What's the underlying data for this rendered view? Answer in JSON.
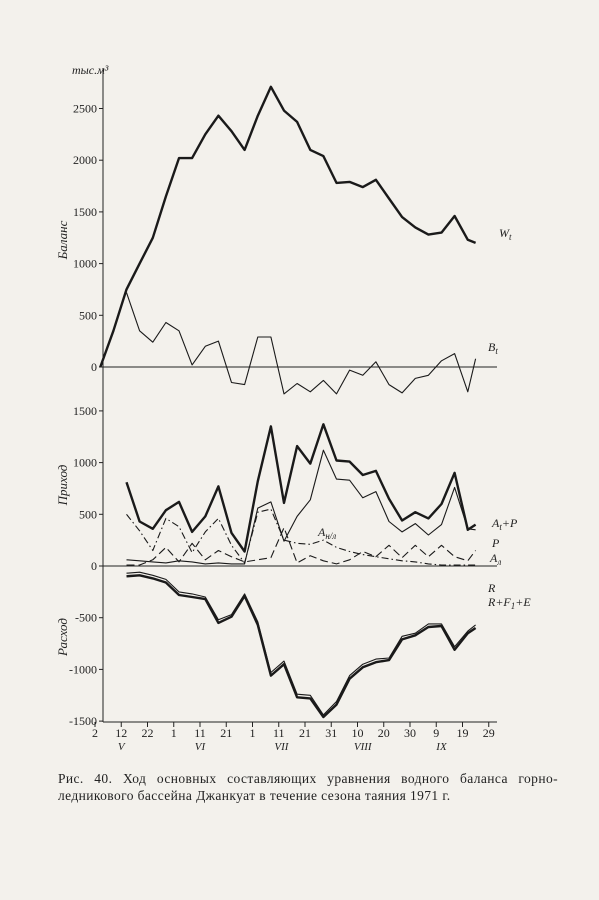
{
  "chart_data": {
    "type": "line",
    "unit": "тыс.м³",
    "x_ticks": [
      "2",
      "12",
      "22",
      "1",
      "11",
      "21",
      "1",
      "11",
      "21",
      "31",
      "10",
      "20",
      "30",
      "9",
      "19",
      "29"
    ],
    "months": [
      "V",
      "VI",
      "VII",
      "VIII",
      "IX"
    ],
    "panels": [
      {
        "ylabel": "Баланс",
        "ylim": [
          0,
          2700
        ],
        "yticks": [
          0,
          500,
          1000,
          1500,
          2000,
          2500
        ],
        "series": [
          {
            "name": "W_t",
            "style": "bold",
            "x": [
              2,
              7,
              12,
              17,
              22,
              27,
              32,
              37,
              42,
              47,
              52,
              57,
              62,
              67,
              72,
              77,
              82,
              87,
              92,
              97,
              102,
              107,
              112,
              117,
              122,
              127,
              132,
              137,
              142,
              145
            ],
            "values": [
              0,
              350,
              750,
              1000,
              1250,
              1650,
              2020,
              2020,
              2250,
              2430,
              2280,
              2100,
              2430,
              2710,
              2480,
              2370,
              2100,
              2040,
              1780,
              1790,
              1740,
              1810,
              1630,
              1450,
              1350,
              1280,
              1300,
              1460,
              1230,
              1200
            ]
          },
          {
            "name": "B_t",
            "style": "thin",
            "x": [
              12,
              17,
              22,
              27,
              32,
              37,
              42,
              47,
              52,
              57,
              62,
              67,
              72,
              77,
              82,
              87,
              92,
              97,
              102,
              107,
              112,
              117,
              122,
              127,
              132,
              137,
              142,
              145
            ],
            "values": [
              720,
              350,
              240,
              430,
              350,
              20,
              200,
              250,
              -150,
              -170,
              290,
              290,
              -260,
              -160,
              -240,
              -130,
              -260,
              -30,
              -80,
              50,
              -170,
              -250,
              -110,
              -80,
              60,
              130,
              -240,
              80
            ]
          }
        ]
      },
      {
        "ylabel": "Приход",
        "ylim": [
          0,
          1500
        ],
        "yticks": [
          0,
          500,
          1000,
          1500
        ],
        "series": [
          {
            "name": "A_t+P",
            "style": "bold",
            "x": [
              12,
              17,
              22,
              27,
              32,
              37,
              42,
              47,
              52,
              57,
              62,
              67,
              72,
              77,
              82,
              87,
              92,
              97,
              102,
              107,
              112,
              117,
              122,
              127,
              132,
              137,
              142,
              145
            ],
            "values": [
              810,
              430,
              360,
              540,
              620,
              330,
              480,
              770,
              320,
              140,
              820,
              1350,
              610,
              1160,
              990,
              1370,
              1020,
              1010,
              880,
              920,
              650,
              440,
              520,
              460,
              600,
              900,
              350,
              400
            ]
          },
          {
            "name": "P",
            "style": "thin",
            "x": [
              12,
              17,
              22,
              27,
              32,
              37,
              42,
              47,
              52,
              57,
              62,
              67,
              72,
              77,
              82,
              87,
              92,
              97,
              102,
              107,
              112,
              117,
              122,
              127,
              132,
              137,
              142,
              145
            ],
            "values": [
              60,
              50,
              40,
              30,
              50,
              40,
              20,
              30,
              20,
              20,
              560,
              620,
              240,
              480,
              640,
              1120,
              840,
              830,
              660,
              720,
              430,
              330,
              410,
              300,
              400,
              760,
              360,
              350
            ]
          },
          {
            "name": "A_н/л",
            "style": "dash-dot",
            "x": [
              12,
              17,
              22,
              27,
              32,
              37,
              42,
              47,
              52,
              57,
              62,
              67,
              72,
              77,
              82,
              87,
              92,
              97,
              102,
              107,
              112,
              117,
              122,
              127,
              132,
              137,
              142,
              145
            ],
            "values": [
              500,
              340,
              150,
              460,
              380,
              130,
              330,
              460,
              200,
              30,
              520,
              550,
              250,
              220,
              210,
              250,
              180,
              140,
              110,
              90,
              70,
              50,
              40,
              20,
              10,
              10,
              10,
              10
            ]
          },
          {
            "name": "A_л",
            "style": "dash",
            "x": [
              12,
              17,
              22,
              27,
              32,
              37,
              42,
              47,
              52,
              57,
              62,
              67,
              72,
              77,
              82,
              87,
              92,
              97,
              102,
              107,
              112,
              117,
              122,
              127,
              132,
              137,
              142,
              145
            ],
            "values": [
              10,
              10,
              60,
              180,
              40,
              220,
              60,
              150,
              90,
              40,
              60,
              80,
              370,
              30,
              100,
              50,
              20,
              60,
              140,
              90,
              200,
              80,
              200,
              90,
              200,
              90,
              50,
              150
            ]
          }
        ]
      },
      {
        "ylabel": "Расход",
        "ylim": [
          -1500,
          0
        ],
        "yticks": [
          -500,
          -1000,
          -1500
        ],
        "series": [
          {
            "name": "R",
            "style": "thin",
            "x": [
              12,
              17,
              22,
              27,
              32,
              37,
              42,
              47,
              52,
              57,
              62,
              67,
              72,
              77,
              82,
              87,
              92,
              97,
              102,
              107,
              112,
              117,
              122,
              127,
              132,
              137,
              142,
              145
            ],
            "values": [
              -70,
              -60,
              -90,
              -130,
              -250,
              -270,
              -300,
              -520,
              -470,
              -270,
              -540,
              -1030,
              -920,
              -1240,
              -1250,
              -1440,
              -1310,
              -1060,
              -950,
              -900,
              -890,
              -680,
              -650,
              -560,
              -560,
              -780,
              -630,
              -570
            ]
          },
          {
            "name": "R+F_1+E",
            "style": "bold",
            "x": [
              12,
              17,
              22,
              27,
              32,
              37,
              42,
              47,
              52,
              57,
              62,
              67,
              72,
              77,
              82,
              87,
              92,
              97,
              102,
              107,
              112,
              117,
              122,
              127,
              132,
              137,
              142,
              145
            ],
            "values": [
              -100,
              -90,
              -120,
              -160,
              -280,
              -300,
              -320,
              -550,
              -490,
              -290,
              -570,
              -1060,
              -950,
              -1270,
              -1280,
              -1460,
              -1340,
              -1090,
              -980,
              -930,
              -910,
              -710,
              -670,
              -590,
              -580,
              -810,
              -650,
              -600
            ]
          }
        ]
      }
    ],
    "labels": {
      "wt": "W",
      "wt_sub": "t",
      "bt": "B",
      "bt_sub": "t",
      "ap": "A",
      "ap_sub": "t",
      "ap_tail": "+P",
      "p": "P",
      "anl": "A",
      "anl_sub": "н/л",
      "al": "A",
      "al_sub": "л",
      "r": "R",
      "rfe": "R+F",
      "rfe_sub": "1",
      "rfe_tail": "+E"
    }
  },
  "caption": "Рис. 40. Ход основных составляющих уравнения водного баланса горно-ледникового бассейна Джанкуат в течение сезона таяния 1971 г."
}
